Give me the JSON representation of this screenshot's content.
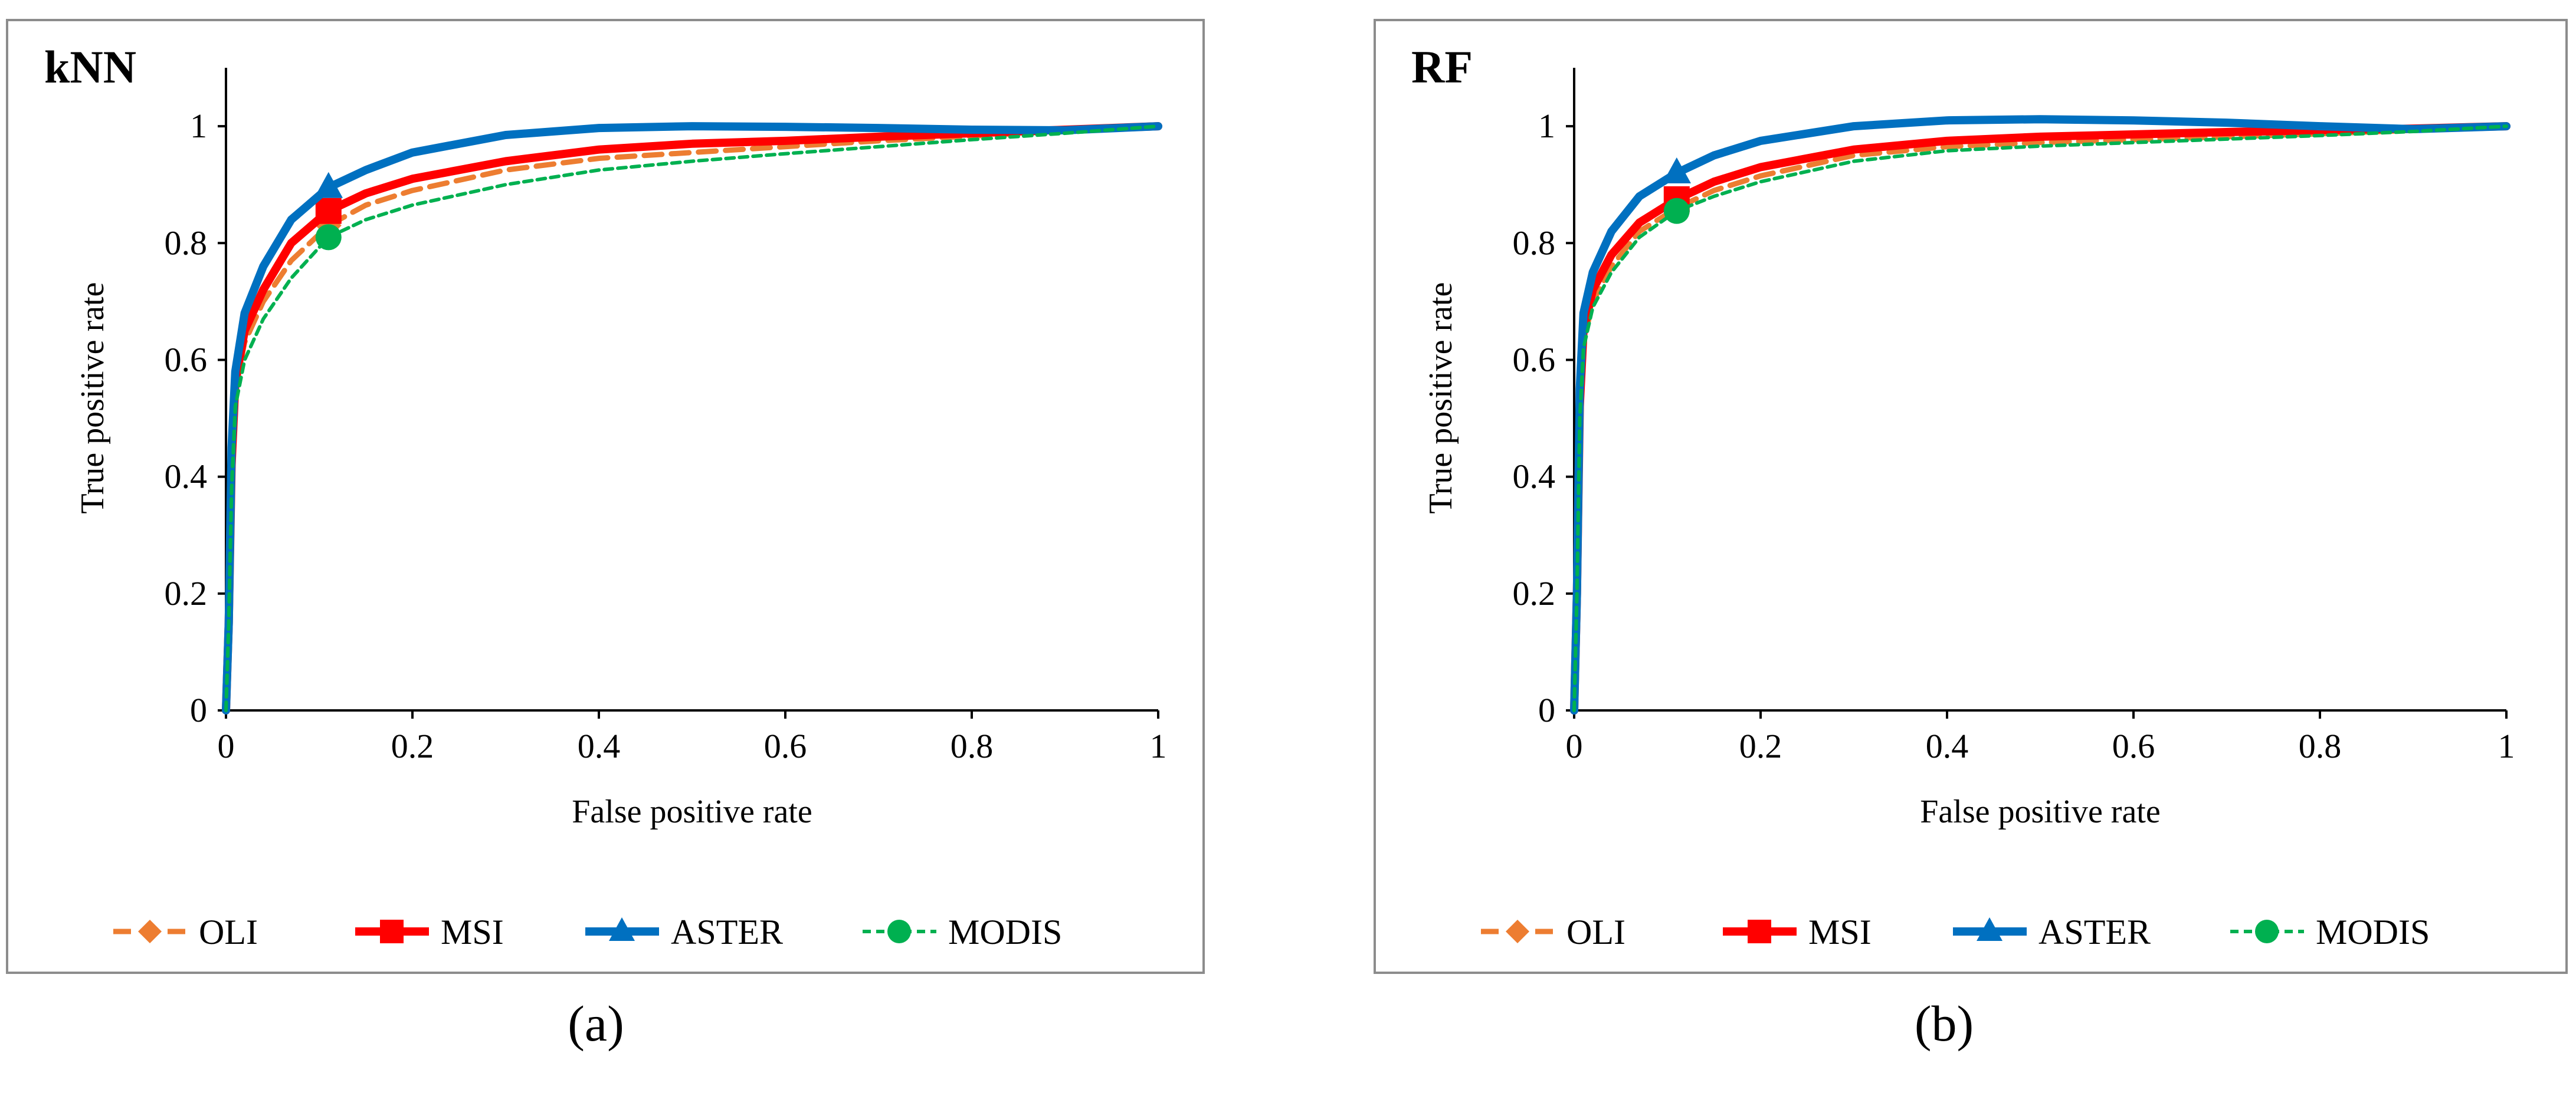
{
  "figure": {
    "captions": [
      "(a)",
      "(b)"
    ]
  },
  "colors": {
    "OLI": "#ED7D31",
    "MSI": "#FF0000",
    "ASTER": "#0070C0",
    "MODIS": "#00B050",
    "frame": "#8c8c8c"
  },
  "chart_data": [
    {
      "type": "line",
      "title": "kNN",
      "xlabel": "False positive rate",
      "ylabel": "True positive rate",
      "xlim": [
        0,
        1
      ],
      "ylim": [
        0,
        1
      ],
      "xticks": [
        "0",
        "0.2",
        "0.4",
        "0.6",
        "0.8",
        "1"
      ],
      "yticks": [
        "0",
        "0.2",
        "0.4",
        "0.6",
        "0.8",
        "1"
      ],
      "grid": false,
      "legend_position": "bottom",
      "series": [
        {
          "name": "OLI",
          "color": "#ED7D31",
          "style": "dashed",
          "marker": "diamond",
          "marker_point": [
            0.11,
            0.83
          ],
          "x": [
            0,
            0.003,
            0.006,
            0.01,
            0.02,
            0.04,
            0.07,
            0.11,
            0.15,
            0.2,
            0.3,
            0.4,
            0.5,
            0.6,
            0.7,
            0.8,
            0.9,
            1.0
          ],
          "y": [
            0,
            0.15,
            0.4,
            0.55,
            0.63,
            0.7,
            0.77,
            0.83,
            0.865,
            0.89,
            0.925,
            0.945,
            0.955,
            0.965,
            0.975,
            0.983,
            0.992,
            1.0
          ]
        },
        {
          "name": "MSI",
          "color": "#FF0000",
          "style": "solid",
          "marker": "square",
          "marker_point": [
            0.11,
            0.855
          ],
          "x": [
            0,
            0.003,
            0.006,
            0.01,
            0.02,
            0.04,
            0.07,
            0.11,
            0.15,
            0.2,
            0.3,
            0.4,
            0.5,
            0.6,
            0.7,
            0.8,
            0.9,
            1.0
          ],
          "y": [
            0,
            0.15,
            0.42,
            0.56,
            0.65,
            0.72,
            0.8,
            0.855,
            0.885,
            0.91,
            0.94,
            0.96,
            0.97,
            0.975,
            0.982,
            0.988,
            0.994,
            1.0
          ]
        },
        {
          "name": "ASTER",
          "color": "#0070C0",
          "style": "solid",
          "marker": "triangle",
          "marker_point": [
            0.11,
            0.895
          ],
          "x": [
            0,
            0.003,
            0.006,
            0.01,
            0.02,
            0.04,
            0.07,
            0.11,
            0.15,
            0.2,
            0.3,
            0.4,
            0.5,
            0.6,
            0.7,
            0.8,
            0.9,
            1.0
          ],
          "y": [
            0,
            0.15,
            0.45,
            0.58,
            0.68,
            0.76,
            0.84,
            0.895,
            0.925,
            0.955,
            0.985,
            0.997,
            1.0,
            0.999,
            0.997,
            0.994,
            0.993,
            1.0
          ]
        },
        {
          "name": "MODIS",
          "color": "#00B050",
          "style": "dotted",
          "marker": "circle",
          "marker_point": [
            0.11,
            0.81
          ],
          "x": [
            0,
            0.003,
            0.006,
            0.01,
            0.02,
            0.04,
            0.07,
            0.11,
            0.15,
            0.2,
            0.3,
            0.4,
            0.5,
            0.6,
            0.7,
            0.8,
            0.9,
            1.0
          ],
          "y": [
            0,
            0.15,
            0.38,
            0.52,
            0.6,
            0.67,
            0.74,
            0.81,
            0.84,
            0.865,
            0.9,
            0.925,
            0.94,
            0.953,
            0.965,
            0.977,
            0.988,
            1.0
          ]
        }
      ]
    },
    {
      "type": "line",
      "title": "RF",
      "xlabel": "False positive rate",
      "ylabel": "True positive rate",
      "xlim": [
        0,
        1
      ],
      "ylim": [
        0,
        1
      ],
      "xticks": [
        "0",
        "0.2",
        "0.4",
        "0.6",
        "0.8",
        "1"
      ],
      "yticks": [
        "0",
        "0.2",
        "0.4",
        "0.6",
        "0.8",
        "1"
      ],
      "grid": false,
      "legend_position": "bottom",
      "series": [
        {
          "name": "OLI",
          "color": "#ED7D31",
          "style": "dashed",
          "marker": "diamond",
          "marker_point": [
            0.11,
            0.86
          ],
          "x": [
            0,
            0.003,
            0.006,
            0.01,
            0.02,
            0.04,
            0.07,
            0.11,
            0.15,
            0.2,
            0.3,
            0.4,
            0.5,
            0.6,
            0.7,
            0.8,
            0.9,
            1.0
          ],
          "y": [
            0,
            0.2,
            0.5,
            0.63,
            0.7,
            0.76,
            0.82,
            0.86,
            0.89,
            0.915,
            0.95,
            0.965,
            0.972,
            0.977,
            0.982,
            0.987,
            0.993,
            1.0
          ]
        },
        {
          "name": "MSI",
          "color": "#FF0000",
          "style": "solid",
          "marker": "square",
          "marker_point": [
            0.11,
            0.875
          ],
          "x": [
            0,
            0.003,
            0.006,
            0.01,
            0.02,
            0.04,
            0.07,
            0.11,
            0.15,
            0.2,
            0.3,
            0.4,
            0.5,
            0.6,
            0.7,
            0.8,
            0.9,
            1.0
          ],
          "y": [
            0,
            0.2,
            0.52,
            0.65,
            0.72,
            0.78,
            0.835,
            0.875,
            0.905,
            0.93,
            0.96,
            0.975,
            0.982,
            0.986,
            0.99,
            0.993,
            0.996,
            1.0
          ]
        },
        {
          "name": "ASTER",
          "color": "#0070C0",
          "style": "solid",
          "marker": "triangle",
          "marker_point": [
            0.11,
            0.92
          ],
          "x": [
            0,
            0.003,
            0.006,
            0.01,
            0.02,
            0.04,
            0.07,
            0.11,
            0.15,
            0.2,
            0.3,
            0.4,
            0.5,
            0.6,
            0.7,
            0.8,
            0.9,
            1.0
          ],
          "y": [
            0,
            0.2,
            0.55,
            0.68,
            0.75,
            0.82,
            0.88,
            0.92,
            0.95,
            0.975,
            1.0,
            1.01,
            1.012,
            1.01,
            1.006,
            1.0,
            0.995,
            1.0
          ]
        },
        {
          "name": "MODIS",
          "color": "#00B050",
          "style": "dotted",
          "marker": "circle",
          "marker_point": [
            0.11,
            0.855
          ],
          "x": [
            0,
            0.003,
            0.006,
            0.01,
            0.02,
            0.04,
            0.07,
            0.11,
            0.15,
            0.2,
            0.3,
            0.4,
            0.5,
            0.6,
            0.7,
            0.8,
            0.9,
            1.0
          ],
          "y": [
            0,
            0.2,
            0.5,
            0.62,
            0.69,
            0.75,
            0.81,
            0.855,
            0.88,
            0.905,
            0.94,
            0.958,
            0.966,
            0.972,
            0.978,
            0.984,
            0.991,
            1.0
          ]
        }
      ]
    }
  ]
}
